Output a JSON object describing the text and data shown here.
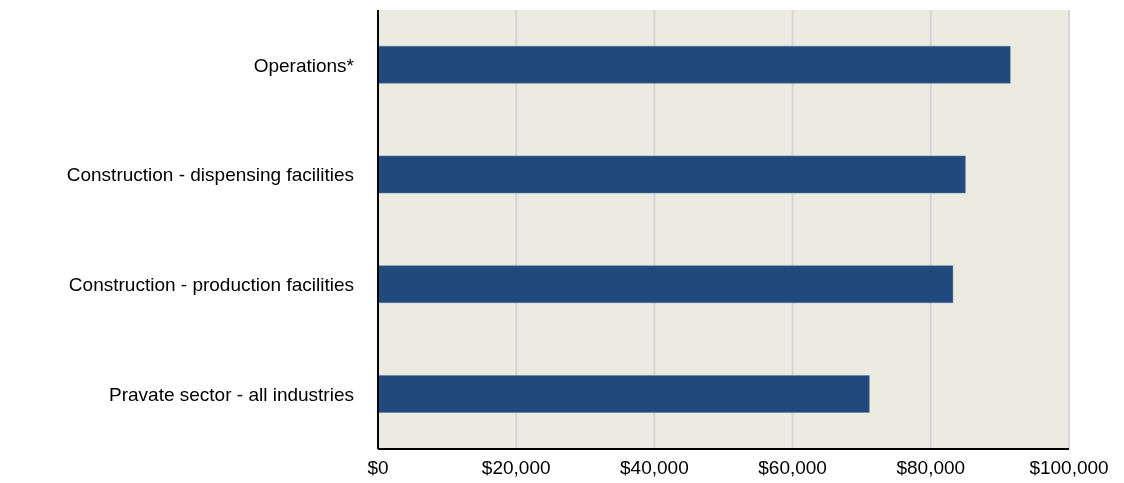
{
  "chart_data": {
    "type": "bar",
    "orientation": "horizontal",
    "categories": [
      "Operations*",
      "Construction - dispensing facilities",
      "Construction - production facilities",
      "Pravate sector  - all industries"
    ],
    "values": [
      91500,
      85000,
      83200,
      71100
    ],
    "color": "#22497b",
    "xlim": [
      0,
      100000
    ],
    "xticks": [
      {
        "value": 0,
        "label": "$0"
      },
      {
        "value": 20000,
        "label": "$20,000"
      },
      {
        "value": 40000,
        "label": "$40,000"
      },
      {
        "value": 60000,
        "label": "$60,000"
      },
      {
        "value": 80000,
        "label": "$80,000"
      },
      {
        "value": 100000,
        "label": "$100,000"
      }
    ],
    "grid": "x",
    "legend": false
  }
}
